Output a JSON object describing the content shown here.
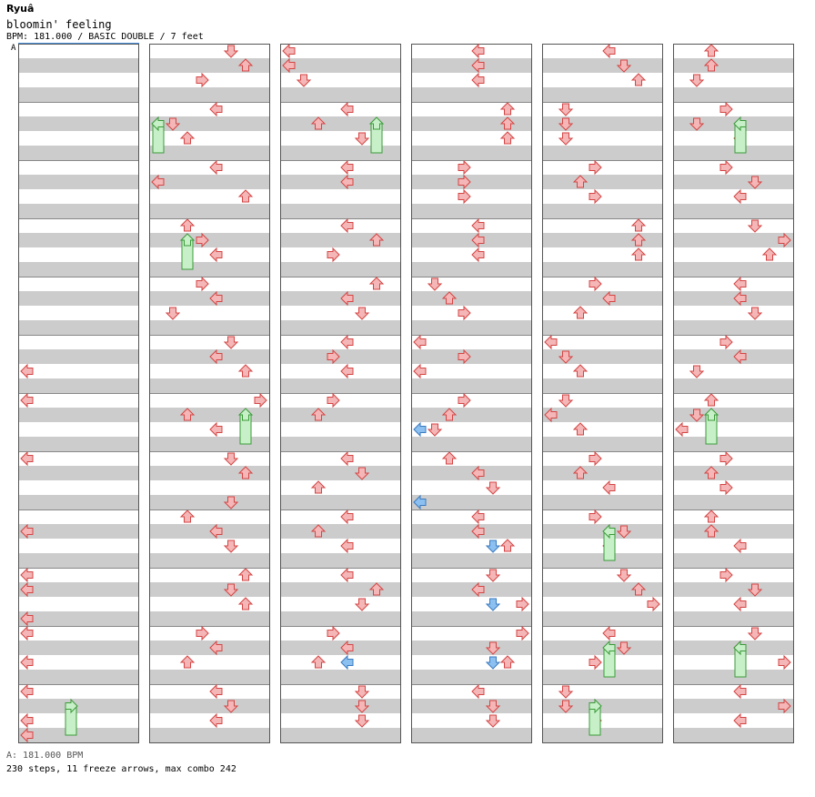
{
  "artist": "Ryuâ",
  "title": "bloomin' feeling",
  "meta": "BPM: 181.000 / BASIC DOUBLE / 7 feet",
  "bpm_marker": "A",
  "footer_bpm": "A: 181.000 BPM",
  "footer_stats": "230 steps, 11 freeze arrows, max combo 242",
  "chart_data": {
    "type": "step-chart",
    "mode": "BASIC DOUBLE",
    "difficulty_feet": 7,
    "bpm": 181,
    "steps": 230,
    "freeze_arrows": 11,
    "max_combo": 242,
    "columns": 6,
    "measures_per_column": 12,
    "rows_per_measure": 4,
    "lanes": [
      "left-1",
      "down-1",
      "up-1",
      "right-1",
      "left-2",
      "down-2",
      "up-2",
      "right-2"
    ],
    "colors": {
      "note": "#f4b6b6",
      "note_stroke": "#d44444",
      "blue": "#8cc0f0",
      "blue_stroke": "#3a7ac0",
      "freeze": "#c8f0c8",
      "freeze_stroke": "#3a9a3a",
      "stripe": "#cccccc"
    },
    "notes": [
      [
        0,
        5,
        2,
        0
      ],
      [
        0,
        6,
        0,
        0
      ],
      [
        0,
        7,
        0,
        0
      ],
      [
        0,
        8,
        1,
        0
      ],
      [
        0,
        9,
        0,
        0
      ],
      [
        0,
        9,
        1,
        0
      ],
      [
        0,
        9,
        3,
        0
      ],
      [
        0,
        10,
        0,
        0
      ],
      [
        0,
        10,
        2,
        0
      ],
      [
        0,
        11,
        0,
        0
      ],
      [
        0,
        11,
        2,
        0
      ],
      [
        0,
        11,
        3,
        0
      ],
      [
        1,
        0,
        0,
        5
      ],
      [
        1,
        0,
        1,
        6
      ],
      [
        1,
        0,
        2,
        3
      ],
      [
        1,
        1,
        0,
        4
      ],
      [
        1,
        1,
        1,
        1
      ],
      [
        1,
        1,
        2,
        2
      ],
      [
        1,
        2,
        0,
        4
      ],
      [
        1,
        2,
        1,
        0
      ],
      [
        1,
        2,
        2,
        6
      ],
      [
        1,
        3,
        0,
        2
      ],
      [
        1,
        3,
        1,
        3
      ],
      [
        1,
        3,
        2,
        4
      ],
      [
        1,
        4,
        0,
        3
      ],
      [
        1,
        4,
        1,
        4
      ],
      [
        1,
        4,
        2,
        1
      ],
      [
        1,
        5,
        0,
        5
      ],
      [
        1,
        5,
        1,
        4
      ],
      [
        1,
        5,
        2,
        6
      ],
      [
        1,
        6,
        0,
        7
      ],
      [
        1,
        6,
        1,
        2
      ],
      [
        1,
        6,
        2,
        4
      ],
      [
        1,
        7,
        0,
        5
      ],
      [
        1,
        7,
        1,
        6
      ],
      [
        1,
        7,
        3,
        5
      ],
      [
        1,
        8,
        0,
        2
      ],
      [
        1,
        8,
        1,
        4
      ],
      [
        1,
        8,
        2,
        5
      ],
      [
        1,
        9,
        0,
        6
      ],
      [
        1,
        9,
        1,
        5
      ],
      [
        1,
        9,
        2,
        6
      ],
      [
        1,
        10,
        0,
        3
      ],
      [
        1,
        10,
        1,
        4
      ],
      [
        1,
        10,
        2,
        2
      ],
      [
        1,
        11,
        0,
        4
      ],
      [
        1,
        11,
        1,
        5
      ],
      [
        1,
        11,
        2,
        4
      ],
      [
        2,
        0,
        0,
        0
      ],
      [
        2,
        0,
        1,
        0
      ],
      [
        2,
        0,
        2,
        1
      ],
      [
        2,
        1,
        0,
        4
      ],
      [
        2,
        1,
        1,
        2
      ],
      [
        2,
        1,
        2,
        5
      ],
      [
        2,
        2,
        0,
        4
      ],
      [
        2,
        2,
        1,
        4
      ],
      [
        2,
        3,
        0,
        4
      ],
      [
        2,
        3,
        1,
        6
      ],
      [
        2,
        3,
        2,
        3
      ],
      [
        2,
        4,
        0,
        6
      ],
      [
        2,
        4,
        1,
        4
      ],
      [
        2,
        4,
        2,
        5
      ],
      [
        2,
        5,
        0,
        4
      ],
      [
        2,
        5,
        1,
        3
      ],
      [
        2,
        5,
        2,
        4
      ],
      [
        2,
        6,
        0,
        3
      ],
      [
        2,
        6,
        1,
        2
      ],
      [
        2,
        7,
        0,
        4
      ],
      [
        2,
        7,
        1,
        5
      ],
      [
        2,
        7,
        2,
        2
      ],
      [
        2,
        8,
        0,
        4
      ],
      [
        2,
        8,
        1,
        2
      ],
      [
        2,
        8,
        2,
        4
      ],
      [
        2,
        9,
        0,
        4
      ],
      [
        2,
        9,
        1,
        6
      ],
      [
        2,
        9,
        2,
        5
      ],
      [
        2,
        10,
        0,
        3
      ],
      [
        2,
        10,
        1,
        4
      ],
      [
        2,
        10,
        2,
        2
      ],
      [
        2,
        11,
        0,
        5
      ],
      [
        2,
        11,
        1,
        5
      ],
      [
        2,
        11,
        2,
        5
      ],
      [
        3,
        0,
        0,
        4
      ],
      [
        3,
        0,
        1,
        4
      ],
      [
        3,
        0,
        2,
        4
      ],
      [
        3,
        1,
        0,
        6
      ],
      [
        3,
        1,
        1,
        6
      ],
      [
        3,
        1,
        2,
        6
      ],
      [
        3,
        2,
        0,
        3
      ],
      [
        3,
        2,
        1,
        3
      ],
      [
        3,
        2,
        2,
        3
      ],
      [
        3,
        3,
        0,
        4
      ],
      [
        3,
        3,
        1,
        4
      ],
      [
        3,
        3,
        2,
        4
      ],
      [
        3,
        4,
        0,
        1
      ],
      [
        3,
        4,
        1,
        2
      ],
      [
        3,
        4,
        2,
        3
      ],
      [
        3,
        5,
        0,
        0
      ],
      [
        3,
        5,
        1,
        3
      ],
      [
        3,
        5,
        2,
        0
      ],
      [
        3,
        6,
        0,
        3
      ],
      [
        3,
        6,
        1,
        2
      ],
      [
        3,
        6,
        2,
        1
      ],
      [
        3,
        7,
        0,
        2
      ],
      [
        3,
        7,
        1,
        4
      ],
      [
        3,
        7,
        2,
        5
      ],
      [
        3,
        8,
        0,
        4
      ],
      [
        3,
        8,
        1,
        4
      ],
      [
        3,
        8,
        2,
        6
      ],
      [
        3,
        9,
        0,
        5
      ],
      [
        3,
        9,
        1,
        4
      ],
      [
        3,
        9,
        2,
        7
      ],
      [
        3,
        10,
        0,
        7
      ],
      [
        3,
        10,
        1,
        5
      ],
      [
        3,
        10,
        2,
        6
      ],
      [
        3,
        11,
        0,
        4
      ],
      [
        3,
        11,
        1,
        5
      ],
      [
        3,
        11,
        2,
        5
      ],
      [
        4,
        0,
        0,
        4
      ],
      [
        4,
        0,
        1,
        5
      ],
      [
        4,
        0,
        2,
        6
      ],
      [
        4,
        1,
        0,
        1
      ],
      [
        4,
        1,
        1,
        1
      ],
      [
        4,
        1,
        2,
        1
      ],
      [
        4,
        2,
        0,
        3
      ],
      [
        4,
        2,
        1,
        2
      ],
      [
        4,
        2,
        2,
        3
      ],
      [
        4,
        3,
        0,
        6
      ],
      [
        4,
        3,
        1,
        6
      ],
      [
        4,
        3,
        2,
        6
      ],
      [
        4,
        4,
        0,
        3
      ],
      [
        4,
        4,
        1,
        4
      ],
      [
        4,
        4,
        2,
        2
      ],
      [
        4,
        5,
        0,
        0
      ],
      [
        4,
        5,
        1,
        1
      ],
      [
        4,
        5,
        2,
        2
      ],
      [
        4,
        6,
        0,
        1
      ],
      [
        4,
        6,
        1,
        0
      ],
      [
        4,
        6,
        2,
        2
      ],
      [
        4,
        7,
        0,
        3
      ],
      [
        4,
        7,
        1,
        2
      ],
      [
        4,
        7,
        2,
        4
      ],
      [
        4,
        8,
        0,
        3
      ],
      [
        4,
        8,
        1,
        5
      ],
      [
        4,
        8,
        2,
        4
      ],
      [
        4,
        9,
        0,
        5
      ],
      [
        4,
        9,
        1,
        6
      ],
      [
        4,
        9,
        2,
        7
      ],
      [
        4,
        10,
        0,
        4
      ],
      [
        4,
        10,
        1,
        5
      ],
      [
        4,
        10,
        2,
        3
      ],
      [
        4,
        11,
        0,
        1
      ],
      [
        4,
        11,
        1,
        1
      ],
      [
        4,
        11,
        2,
        3
      ],
      [
        5,
        0,
        0,
        2
      ],
      [
        5,
        0,
        1,
        2
      ],
      [
        5,
        0,
        2,
        1
      ],
      [
        5,
        1,
        0,
        3
      ],
      [
        5,
        1,
        1,
        1
      ],
      [
        5,
        1,
        2,
        4
      ],
      [
        5,
        2,
        0,
        3
      ],
      [
        5,
        2,
        1,
        5
      ],
      [
        5,
        2,
        2,
        4
      ],
      [
        5,
        3,
        0,
        5
      ],
      [
        5,
        3,
        1,
        7
      ],
      [
        5,
        3,
        2,
        6
      ],
      [
        5,
        4,
        0,
        4
      ],
      [
        5,
        4,
        1,
        4
      ],
      [
        5,
        4,
        2,
        5
      ],
      [
        5,
        5,
        0,
        3
      ],
      [
        5,
        5,
        1,
        4
      ],
      [
        5,
        5,
        2,
        1
      ],
      [
        5,
        6,
        0,
        2
      ],
      [
        5,
        6,
        1,
        1
      ],
      [
        5,
        6,
        2,
        0
      ],
      [
        5,
        7,
        0,
        3
      ],
      [
        5,
        7,
        1,
        2
      ],
      [
        5,
        7,
        2,
        3
      ],
      [
        5,
        8,
        0,
        2
      ],
      [
        5,
        8,
        1,
        2
      ],
      [
        5,
        8,
        2,
        4
      ],
      [
        5,
        9,
        0,
        3
      ],
      [
        5,
        9,
        1,
        5
      ],
      [
        5,
        9,
        2,
        4
      ],
      [
        5,
        10,
        0,
        5
      ],
      [
        5,
        10,
        1,
        4
      ],
      [
        5,
        10,
        2,
        7
      ],
      [
        5,
        11,
        0,
        4
      ],
      [
        5,
        11,
        1,
        7
      ],
      [
        5,
        11,
        2,
        4
      ]
    ],
    "blue_notes": [
      [
        2,
        10,
        2,
        4
      ],
      [
        3,
        6,
        2,
        0
      ],
      [
        3,
        7,
        3,
        0
      ],
      [
        3,
        8,
        2,
        5
      ],
      [
        3,
        9,
        2,
        5
      ],
      [
        3,
        10,
        2,
        5
      ]
    ],
    "freezes": [
      [
        0,
        11,
        3,
        3
      ],
      [
        1,
        1,
        3,
        0
      ],
      [
        1,
        3,
        3,
        2
      ],
      [
        1,
        6,
        3,
        6
      ],
      [
        2,
        1,
        3,
        6
      ],
      [
        4,
        8,
        3,
        4
      ],
      [
        4,
        10,
        3,
        4
      ],
      [
        4,
        11,
        3,
        3
      ],
      [
        5,
        1,
        3,
        4
      ],
      [
        5,
        6,
        3,
        2
      ],
      [
        5,
        10,
        3,
        4
      ]
    ]
  }
}
